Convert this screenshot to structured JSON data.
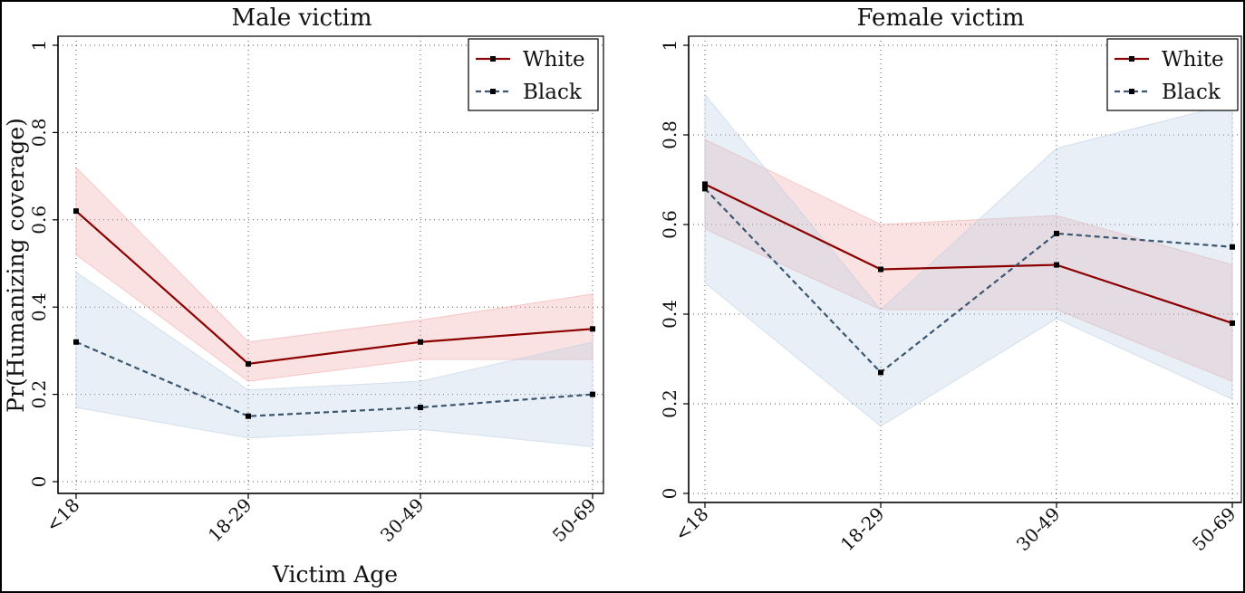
{
  "chart_data": [
    {
      "type": "line",
      "title": "Male victim",
      "xlabel": "Victim Age",
      "ylabel": "Pr(Humanizing coverage)",
      "categories": [
        "<18",
        "18-29",
        "30-49",
        "50-69"
      ],
      "ylim": [
        0,
        1
      ],
      "yticks": [
        "0",
        "0.2",
        "0.4",
        "0.6",
        "0.8",
        "1"
      ],
      "grid": true,
      "legend_position": "top-right",
      "series": [
        {
          "name": "White",
          "color": "#8b0000",
          "line_style": "solid",
          "band_color": "#f4a6a6",
          "values": [
            0.62,
            0.27,
            0.32,
            0.35
          ],
          "lower": [
            0.52,
            0.23,
            0.28,
            0.28
          ],
          "upper": [
            0.72,
            0.32,
            0.37,
            0.43
          ]
        },
        {
          "name": "Black",
          "color": "#3b5670",
          "line_style": "dashed",
          "band_color": "#b9cde3",
          "values": [
            0.32,
            0.15,
            0.17,
            0.2
          ],
          "lower": [
            0.17,
            0.1,
            0.12,
            0.08
          ],
          "upper": [
            0.48,
            0.21,
            0.23,
            0.32
          ]
        }
      ]
    },
    {
      "type": "line",
      "title": "Female victim",
      "xlabel": "",
      "ylabel": "",
      "categories": [
        "<18",
        "18-29",
        "30-49",
        "50-69"
      ],
      "ylim": [
        0,
        1
      ],
      "yticks": [
        "0",
        "0.2",
        "0.4",
        "0.6",
        "0.8",
        "1"
      ],
      "grid": true,
      "legend_position": "top-right",
      "series": [
        {
          "name": "White",
          "color": "#8b0000",
          "line_style": "solid",
          "band_color": "#f4a6a6",
          "values": [
            0.69,
            0.5,
            0.51,
            0.38
          ],
          "lower": [
            0.59,
            0.41,
            0.41,
            0.25
          ],
          "upper": [
            0.79,
            0.6,
            0.62,
            0.51
          ]
        },
        {
          "name": "Black",
          "color": "#3b5670",
          "line_style": "dashed",
          "band_color": "#b9cde3",
          "values": [
            0.68,
            0.27,
            0.58,
            0.55
          ],
          "lower": [
            0.47,
            0.15,
            0.39,
            0.21
          ],
          "upper": [
            0.89,
            0.41,
            0.77,
            0.87
          ]
        }
      ]
    }
  ]
}
